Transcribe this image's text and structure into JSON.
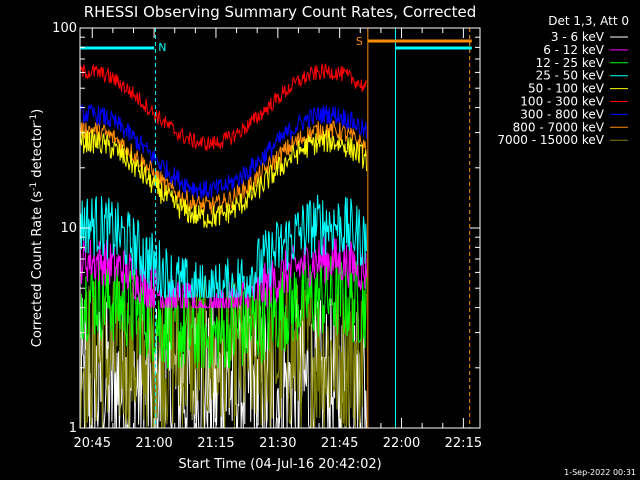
{
  "chart_data": {
    "type": "line",
    "title": "RHESSI Observing Summary Count Rates, Corrected",
    "xlabel": "Start Time (04-Jul-16 20:42:02)",
    "ylabel_main": "Corrected Count Rate (s",
    "ylabel_sup1": "-1",
    "ylabel_mid": " detector",
    "ylabel_sup2": "-1",
    "ylabel_end": ")",
    "y_scale": "log",
    "ylim": [
      1,
      100
    ],
    "y_ticks": [
      {
        "value": 1,
        "label": "1"
      },
      {
        "value": 10,
        "label": "10"
      },
      {
        "value": 100,
        "label": "100"
      }
    ],
    "x_range_minutes": [
      0,
      97
    ],
    "x_ticks": [
      {
        "minutes": 2.97,
        "label": "20:45"
      },
      {
        "minutes": 17.97,
        "label": "21:00"
      },
      {
        "minutes": 32.97,
        "label": "21:15"
      },
      {
        "minutes": 47.97,
        "label": "21:30"
      },
      {
        "minutes": 62.97,
        "label": "21:45"
      },
      {
        "minutes": 77.97,
        "label": "22:00"
      },
      {
        "minutes": 92.97,
        "label": "22:15"
      }
    ],
    "legend_title": "Det 1,3, Att 0",
    "legend_placement": "top-right outside",
    "series": [
      {
        "name": "3 - 6 keV",
        "color": "#ffffff",
        "level": 1.6,
        "amp": 0.0,
        "noise": 0.45,
        "floor": 1.0
      },
      {
        "name": "6 - 12 keV",
        "color": "#ff00ff",
        "level": 5.2,
        "amp": 0.25,
        "noise": 0.12,
        "floor": 4.0
      },
      {
        "name": "12 - 25 keV",
        "color": "#00ff00",
        "level": 3.6,
        "amp": 0.2,
        "noise": 0.22,
        "floor": 2.0
      },
      {
        "name": "25 - 50 keV",
        "color": "#00ffff",
        "level": 7.0,
        "amp": 0.35,
        "noise": 0.16,
        "floor": 4.5
      },
      {
        "name": "50 - 100 keV",
        "color": "#ffff00",
        "level": 17.5,
        "amp": 0.38,
        "noise": 0.06,
        "floor": 1.0
      },
      {
        "name": "100 - 300 keV",
        "color": "#ff0000",
        "level": 40.0,
        "amp": 0.36,
        "noise": 0.04,
        "floor": 1.0
      },
      {
        "name": "300 - 800 keV",
        "color": "#0000ff",
        "level": 24.0,
        "amp": 0.38,
        "noise": 0.05,
        "floor": 1.0
      },
      {
        "name": "800 - 7000 keV",
        "color": "#ff8c00",
        "level": 20.0,
        "amp": 0.38,
        "noise": 0.05,
        "floor": 1.0
      },
      {
        "name": "7000 - 15000 keV",
        "color": "#808000",
        "level": 2.3,
        "amp": 0.0,
        "noise": 0.4,
        "floor": 1.0
      }
    ],
    "data_end_minutes": 69.5,
    "flags": [
      {
        "label": "N",
        "color": "#00ffff",
        "start_minutes": 0,
        "end_minutes": 18
      },
      {
        "label": "",
        "color": "#00ffff",
        "start_minutes": 76.5,
        "end_minutes": 95
      },
      {
        "label": "S",
        "color": "#ff8c00",
        "start_minutes": 69.8,
        "end_minutes": 95
      }
    ],
    "markers": [
      {
        "minutes": 18.3,
        "color": "#00ffff",
        "style": "dashed"
      },
      {
        "minutes": 69.8,
        "color": "#ff8c00",
        "style": "solid"
      },
      {
        "minutes": 76.5,
        "color": "#00ffff",
        "style": "solid"
      },
      {
        "minutes": 94.5,
        "color": "#ff8c00",
        "style": "dashed"
      }
    ]
  },
  "timestamp": "1-Sep-2022 00:31"
}
